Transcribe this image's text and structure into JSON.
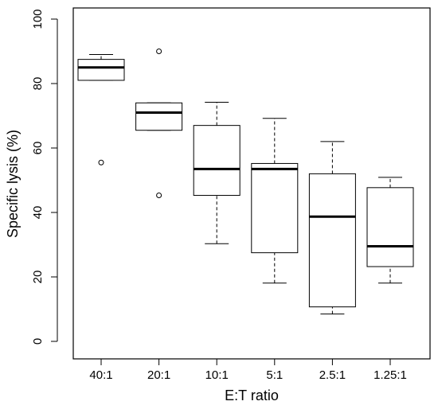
{
  "chart_data": {
    "type": "boxplot",
    "xlabel": "E:T ratio",
    "ylabel": "Specific lysis (%)",
    "ylim": [
      0,
      100
    ],
    "yticks": [
      0,
      20,
      40,
      60,
      80,
      100
    ],
    "categories": [
      "40:1",
      "20:1",
      "10:1",
      "5:1",
      "2.5:1",
      "1.25:1"
    ],
    "boxes": [
      {
        "category": "40:1",
        "whisker_low": 81.0,
        "q1": 81.0,
        "median": 85.0,
        "q3": 87.5,
        "whisker_high": 89.0,
        "outliers": [
          55.5
        ]
      },
      {
        "category": "20:1",
        "whisker_low": 65.5,
        "q1": 65.5,
        "median": 71.0,
        "q3": 74.0,
        "whisker_high": 74.0,
        "outliers": [
          90.0,
          45.3
        ]
      },
      {
        "category": "10:1",
        "whisker_low": 30.3,
        "q1": 45.3,
        "median": 53.5,
        "q3": 67.0,
        "whisker_high": 74.2,
        "outliers": []
      },
      {
        "category": "5:1",
        "whisker_low": 18.1,
        "q1": 27.5,
        "median": 53.5,
        "q3": 55.2,
        "whisker_high": 69.2,
        "outliers": []
      },
      {
        "category": "2.5:1",
        "whisker_low": 8.5,
        "q1": 10.7,
        "median": 38.7,
        "q3": 52.0,
        "whisker_high": 62.0,
        "outliers": []
      },
      {
        "category": "1.25:1",
        "whisker_low": 18.1,
        "q1": 23.2,
        "median": 29.5,
        "q3": 47.7,
        "whisker_high": 50.9,
        "outliers": []
      }
    ],
    "grid": false,
    "legend": "none"
  }
}
